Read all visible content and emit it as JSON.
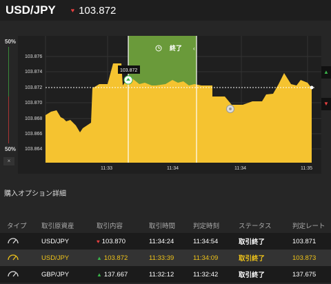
{
  "header": {
    "pair": "USD/JPY",
    "rate": "103.872",
    "trend": "down"
  },
  "meter": {
    "top_pct": "50%",
    "bottom_pct": "50%",
    "close_symbol": "×"
  },
  "chart": {
    "y_ticks": [
      "103.876",
      "103.874",
      "103.872",
      "103.870",
      "103.868",
      "103.866",
      "103.864"
    ],
    "x_ticks": [
      "11:33",
      "11:34",
      "11:34",
      "11:35"
    ],
    "ref_label": "103.872",
    "window_label": "終了",
    "colors": {
      "area": "#f5c330",
      "window": "#6a9a3a",
      "up": "#3ab54a",
      "down": "#e84040"
    }
  },
  "details": {
    "title": "購入オプション詳細",
    "columns": [
      "タイプ",
      "取引原資産",
      "取引内容",
      "取引時間",
      "判定時刻",
      "ステータス",
      "判定レート"
    ],
    "rows": [
      {
        "pair": "USD/JPY",
        "dir": "down",
        "price": "103.870",
        "time": "11:34:24",
        "judge": "11:34:54",
        "status": "取引終了",
        "rate": "103.871"
      },
      {
        "pair": "USD/JPY",
        "dir": "up",
        "price": "103.872",
        "time": "11:33:39",
        "judge": "11:34:09",
        "status": "取引終了",
        "rate": "103.873"
      },
      {
        "pair": "GBP/JPY",
        "dir": "up",
        "price": "137.667",
        "time": "11:32:12",
        "judge": "11:32:42",
        "status": "取引終了",
        "rate": "137.675"
      }
    ]
  }
}
